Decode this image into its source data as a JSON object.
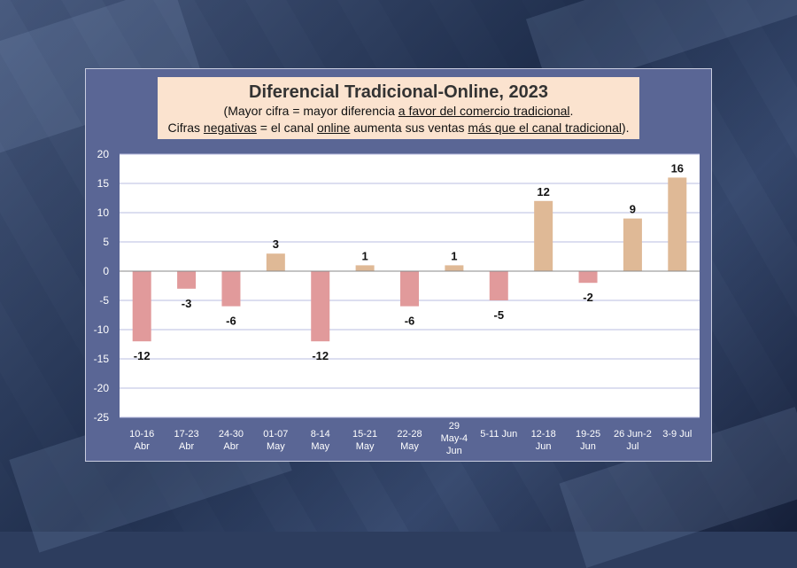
{
  "chart_data": {
    "type": "bar",
    "title": "Diferencial Tradicional-Online, 2023",
    "subtitle_line1": {
      "a": "(Mayor cifra = mayor diferencia ",
      "b": "a favor del comercio tradicional",
      "c": "."
    },
    "subtitle_line2": {
      "a": "Cifras ",
      "b": "negativas",
      "c": " = el canal ",
      "d": "online",
      "e": " aumenta sus ventas ",
      "f": "más que el canal tradicional",
      "g": ")."
    },
    "categories": [
      [
        "10-16",
        "Abr"
      ],
      [
        "17-23",
        "Abr"
      ],
      [
        "24-30",
        "Abr"
      ],
      [
        "01-07",
        "May"
      ],
      [
        "8-14",
        "May"
      ],
      [
        "15-21",
        "May"
      ],
      [
        "22-28",
        "May"
      ],
      [
        "29",
        "May-4",
        "Jun"
      ],
      [
        "5-11 Jun"
      ],
      [
        "12-18",
        "Jun"
      ],
      [
        "19-25",
        "Jun"
      ],
      [
        "26 Jun-2",
        "Jul"
      ],
      [
        "3-9 Jul"
      ]
    ],
    "values": [
      -12,
      -3,
      -6,
      3,
      -12,
      1,
      -6,
      1,
      -5,
      12,
      -2,
      9,
      16
    ],
    "value_labels": [
      "-12",
      "-3",
      "-6",
      "3",
      "-12",
      "1",
      "-6",
      "1",
      "-5",
      "12",
      "-2",
      "9",
      "16"
    ],
    "ylim": [
      -25,
      20
    ],
    "yticks": [
      20,
      15,
      10,
      5,
      0,
      -5,
      -10,
      -15,
      -20,
      -25
    ],
    "grid": true,
    "colors": {
      "positive": "#dfb996",
      "negative": "#e19a9b",
      "plot_bg": "#ffffff",
      "grid": "#b9bde0",
      "axis_text": "#ffffff",
      "panel": "#5a6695",
      "title_bg": "#fbe3cf"
    }
  }
}
